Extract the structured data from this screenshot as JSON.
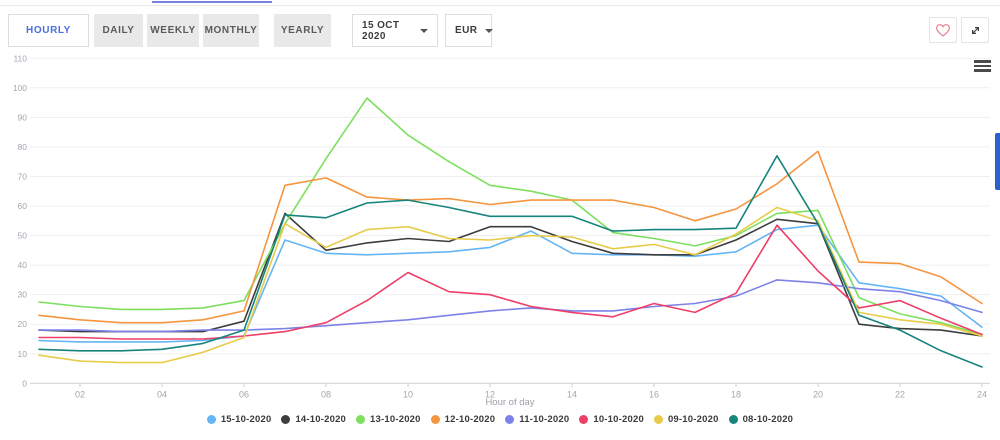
{
  "toolbar": {
    "tabs": [
      {
        "label": "HOURLY",
        "active": true
      },
      {
        "label": "DAILY",
        "active": false
      },
      {
        "label": "WEEKLY",
        "active": false
      },
      {
        "label": "MONTHLY",
        "active": false
      },
      {
        "label": "YEARLY",
        "active": false
      }
    ],
    "date_selector": "15 OCT 2020",
    "currency_selector": "EUR",
    "icons": [
      "heart-icon",
      "expand-icon",
      "menu-icon"
    ]
  },
  "colors": {
    "accent_blue": "#4a6fe3",
    "heart_pink": "#e57e92",
    "scrollbar_blue": "#2a62c9",
    "grid": "#efefef",
    "axis": "#cfcfcf",
    "tick_text": "#a8a2ae"
  },
  "chart_data": {
    "type": "line",
    "xlabel": "Hour of day",
    "x": [
      1,
      2,
      3,
      4,
      5,
      6,
      7,
      8,
      9,
      10,
      11,
      12,
      13,
      14,
      15,
      16,
      17,
      18,
      19,
      20,
      21,
      22,
      23,
      24
    ],
    "x_tick_hours": [
      2,
      4,
      6,
      8,
      10,
      12,
      14,
      16,
      18,
      20,
      22,
      24
    ],
    "x_tick_labels": [
      "02",
      "04",
      "06",
      "08",
      "10",
      "12",
      "14",
      "16",
      "18",
      "20",
      "22",
      "24"
    ],
    "ylim": [
      0,
      110
    ],
    "y_ticks": [
      0,
      10,
      20,
      30,
      40,
      50,
      60,
      70,
      80,
      90,
      100,
      110
    ],
    "grid": true,
    "legend_position": "bottom",
    "series": [
      {
        "name": "15-10-2020",
        "color": "#64b5f6",
        "values": [
          14.5,
          14,
          14,
          14,
          14.5,
          16,
          48.5,
          44,
          43.5,
          44,
          44.5,
          46,
          51.5,
          44,
          43.5,
          43.5,
          43,
          44.5,
          52,
          53.5,
          34,
          32,
          29.5,
          19
        ]
      },
      {
        "name": "14-10-2020",
        "color": "#3d3d3d",
        "values": [
          18,
          17.5,
          17.5,
          17.5,
          17.5,
          21,
          57.5,
          45,
          47.5,
          49,
          48,
          53,
          53,
          48,
          44,
          43.5,
          43.5,
          48.5,
          55.5,
          54,
          20,
          18.5,
          18,
          16
        ]
      },
      {
        "name": "13-10-2020",
        "color": "#7ce05e",
        "values": [
          27.5,
          26,
          25,
          25,
          25.5,
          28,
          54,
          76,
          96.5,
          84,
          75,
          67,
          65,
          62,
          51,
          49,
          46.5,
          50,
          57.5,
          58.5,
          29,
          23.5,
          20.5,
          16.5
        ]
      },
      {
        "name": "12-10-2020",
        "color": "#f6953f",
        "values": [
          23,
          21.5,
          20.5,
          20.5,
          21.5,
          24.5,
          67,
          69.5,
          63,
          62,
          62.5,
          60.5,
          62,
          62,
          62,
          59.5,
          55,
          59,
          67.5,
          78.5,
          41,
          40.5,
          36,
          27
        ]
      },
      {
        "name": "11-10-2020",
        "color": "#7d82e8",
        "values": [
          18,
          18,
          17.5,
          17.5,
          18,
          18,
          18.5,
          19.5,
          20.5,
          21.5,
          23,
          24.5,
          25.5,
          24.5,
          24.5,
          26,
          27,
          29.5,
          35,
          34,
          32,
          31,
          28,
          24
        ]
      },
      {
        "name": "10-10-2020",
        "color": "#ef3e68",
        "values": [
          15.5,
          15.5,
          15,
          15,
          15,
          16,
          17.5,
          20.5,
          28,
          37.5,
          31,
          30,
          26,
          24,
          22.5,
          27,
          24,
          30.5,
          53.5,
          38,
          25.5,
          28,
          22,
          16.5
        ]
      },
      {
        "name": "09-10-2020",
        "color": "#e7cc4a",
        "values": [
          9.5,
          7.5,
          7,
          7,
          10.5,
          15.5,
          54,
          46,
          52,
          53,
          49,
          48.5,
          50,
          49.5,
          45.5,
          47,
          43.5,
          50.5,
          59.5,
          55,
          24,
          21.5,
          20,
          16
        ]
      },
      {
        "name": "08-10-2020",
        "color": "#17857c",
        "values": [
          11.5,
          11,
          11,
          11.5,
          13.5,
          18,
          57,
          56,
          61,
          62,
          59.5,
          56.5,
          56.5,
          56.5,
          51.5,
          52,
          52,
          52.5,
          77,
          54,
          23,
          18,
          11,
          5.5
        ]
      }
    ]
  }
}
